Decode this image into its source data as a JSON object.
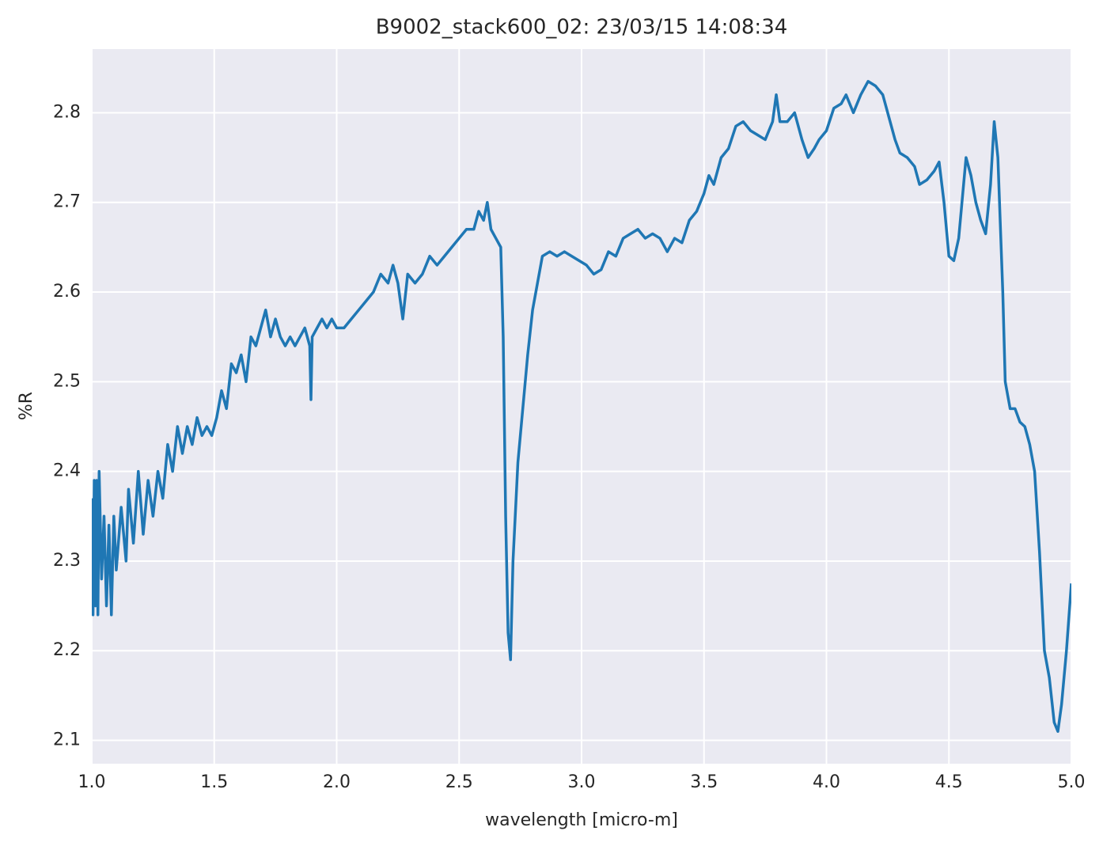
{
  "chart_data": {
    "type": "line",
    "title": "B9002_stack600_02:  23/03/15 14:08:34",
    "x_label": "wavelength [micro-m]",
    "y_label": "%R",
    "x": [
      1.0,
      1.005,
      1.01,
      1.015,
      1.02,
      1.025,
      1.03,
      1.04,
      1.05,
      1.06,
      1.07,
      1.08,
      1.09,
      1.1,
      1.12,
      1.14,
      1.15,
      1.17,
      1.19,
      1.21,
      1.23,
      1.25,
      1.27,
      1.29,
      1.31,
      1.33,
      1.35,
      1.37,
      1.39,
      1.41,
      1.43,
      1.45,
      1.47,
      1.49,
      1.51,
      1.53,
      1.55,
      1.57,
      1.59,
      1.61,
      1.63,
      1.65,
      1.67,
      1.69,
      1.71,
      1.73,
      1.75,
      1.77,
      1.79,
      1.81,
      1.83,
      1.85,
      1.87,
      1.89,
      1.895,
      1.9,
      1.92,
      1.94,
      1.96,
      1.98,
      2.0,
      2.03,
      2.06,
      2.09,
      2.12,
      2.15,
      2.18,
      2.21,
      2.23,
      2.25,
      2.27,
      2.29,
      2.32,
      2.35,
      2.38,
      2.41,
      2.44,
      2.47,
      2.5,
      2.53,
      2.56,
      2.58,
      2.6,
      2.615,
      2.63,
      2.65,
      2.67,
      2.68,
      2.69,
      2.7,
      2.71,
      2.72,
      2.74,
      2.76,
      2.78,
      2.8,
      2.82,
      2.84,
      2.87,
      2.9,
      2.93,
      2.96,
      2.99,
      3.02,
      3.05,
      3.08,
      3.11,
      3.14,
      3.17,
      3.2,
      3.23,
      3.26,
      3.29,
      3.32,
      3.35,
      3.38,
      3.41,
      3.44,
      3.47,
      3.5,
      3.52,
      3.54,
      3.57,
      3.6,
      3.63,
      3.66,
      3.69,
      3.72,
      3.75,
      3.78,
      3.795,
      3.81,
      3.84,
      3.87,
      3.9,
      3.925,
      3.95,
      3.97,
      4.0,
      4.03,
      4.06,
      4.08,
      4.11,
      4.14,
      4.17,
      4.2,
      4.23,
      4.26,
      4.28,
      4.3,
      4.33,
      4.36,
      4.38,
      4.41,
      4.44,
      4.46,
      4.48,
      4.5,
      4.52,
      4.54,
      4.56,
      4.57,
      4.59,
      4.61,
      4.63,
      4.65,
      4.67,
      4.685,
      4.7,
      4.72,
      4.73,
      4.75,
      4.77,
      4.79,
      4.81,
      4.83,
      4.85,
      4.87,
      4.89,
      4.91,
      4.93,
      4.945,
      4.96,
      4.98,
      5.0
    ],
    "series": [
      {
        "name": "%R",
        "color": "#1f77b4",
        "values": [
          2.37,
          2.24,
          2.39,
          2.25,
          2.39,
          2.24,
          2.4,
          2.28,
          2.35,
          2.25,
          2.34,
          2.24,
          2.35,
          2.29,
          2.36,
          2.3,
          2.38,
          2.32,
          2.4,
          2.33,
          2.39,
          2.35,
          2.4,
          2.37,
          2.43,
          2.4,
          2.45,
          2.42,
          2.45,
          2.43,
          2.46,
          2.44,
          2.45,
          2.44,
          2.46,
          2.49,
          2.47,
          2.52,
          2.51,
          2.53,
          2.5,
          2.55,
          2.54,
          2.56,
          2.58,
          2.55,
          2.57,
          2.55,
          2.54,
          2.55,
          2.54,
          2.55,
          2.56,
          2.54,
          2.48,
          2.55,
          2.56,
          2.57,
          2.56,
          2.57,
          2.56,
          2.56,
          2.57,
          2.58,
          2.59,
          2.6,
          2.62,
          2.61,
          2.63,
          2.61,
          2.57,
          2.62,
          2.61,
          2.62,
          2.64,
          2.63,
          2.64,
          2.65,
          2.66,
          2.67,
          2.67,
          2.69,
          2.68,
          2.7,
          2.67,
          2.66,
          2.65,
          2.55,
          2.35,
          2.22,
          2.19,
          2.3,
          2.41,
          2.47,
          2.53,
          2.58,
          2.61,
          2.64,
          2.645,
          2.64,
          2.645,
          2.64,
          2.635,
          2.63,
          2.62,
          2.625,
          2.645,
          2.64,
          2.66,
          2.665,
          2.67,
          2.66,
          2.665,
          2.66,
          2.645,
          2.66,
          2.655,
          2.68,
          2.69,
          2.71,
          2.73,
          2.72,
          2.75,
          2.76,
          2.785,
          2.79,
          2.78,
          2.775,
          2.77,
          2.79,
          2.82,
          2.79,
          2.79,
          2.8,
          2.77,
          2.75,
          2.76,
          2.77,
          2.78,
          2.805,
          2.81,
          2.82,
          2.8,
          2.82,
          2.835,
          2.83,
          2.82,
          2.79,
          2.77,
          2.755,
          2.75,
          2.74,
          2.72,
          2.725,
          2.735,
          2.745,
          2.7,
          2.64,
          2.635,
          2.66,
          2.72,
          2.75,
          2.73,
          2.7,
          2.68,
          2.665,
          2.72,
          2.79,
          2.75,
          2.6,
          2.5,
          2.47,
          2.47,
          2.455,
          2.45,
          2.43,
          2.4,
          2.31,
          2.2,
          2.17,
          2.12,
          2.11,
          2.14,
          2.2,
          2.275
        ]
      }
    ],
    "xlim": [
      1.0,
      5.0
    ],
    "xticks": [
      {
        "value": 1.0,
        "label": "1.0"
      },
      {
        "value": 1.5,
        "label": "1.5"
      },
      {
        "value": 2.0,
        "label": "2.0"
      },
      {
        "value": 2.5,
        "label": "2.5"
      },
      {
        "value": 3.0,
        "label": "3.0"
      },
      {
        "value": 3.5,
        "label": "3.5"
      },
      {
        "value": 4.0,
        "label": "4.0"
      },
      {
        "value": 4.5,
        "label": "4.5"
      },
      {
        "value": 5.0,
        "label": "5.0"
      }
    ],
    "ylim": [
      2.074,
      2.871
    ],
    "yticks": [
      2.1,
      2.2,
      2.3,
      2.4,
      2.5,
      2.6,
      2.7,
      2.8
    ],
    "grid": true
  }
}
